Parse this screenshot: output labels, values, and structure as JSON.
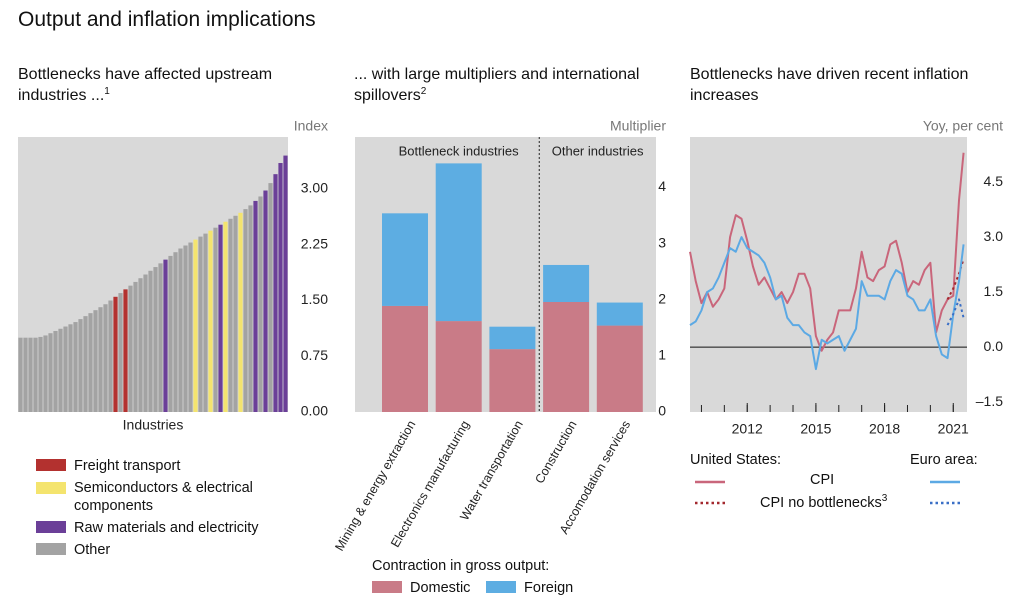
{
  "title": "Output and inflation implications",
  "chart_data": [
    {
      "type": "bar",
      "title": "Bottlenecks have affected upstream industries ...",
      "title_footnote": "1",
      "x_label": "Industries",
      "y_unit": "Index",
      "yaxis_side": "right",
      "background": "#d9d9d9",
      "categories": [
        null,
        null,
        null,
        null,
        null,
        null,
        null,
        null,
        null,
        null,
        null,
        null,
        null,
        null,
        null,
        null,
        null,
        null,
        null,
        null,
        null,
        null,
        null,
        null,
        null,
        null,
        null,
        null,
        null,
        null,
        null,
        null,
        null,
        null,
        null,
        null,
        null,
        null,
        null,
        null,
        null,
        null,
        null,
        null,
        null,
        null,
        null,
        null,
        null,
        null,
        null,
        null,
        null,
        null
      ],
      "ylim": [
        0,
        3.7
      ],
      "yticks": [
        {
          "value": 0,
          "label": "0.00"
        },
        0.75,
        {
          "value": 1.5,
          "label": "1.50"
        },
        2.25,
        {
          "value": 3,
          "label": "3.00"
        }
      ],
      "series": [
        {
          "name": "Freight transport",
          "color": "#b3312f",
          "values": [
            null,
            null,
            null,
            null,
            null,
            null,
            null,
            null,
            null,
            null,
            null,
            null,
            null,
            null,
            null,
            null,
            null,
            null,
            null,
            1.55,
            null,
            1.65,
            null,
            null,
            null,
            null,
            null,
            null,
            null,
            null,
            null,
            null,
            null,
            null,
            null,
            null,
            null,
            null,
            null,
            null,
            null,
            null,
            null,
            null,
            null,
            null,
            null,
            null,
            null,
            null,
            null,
            null,
            null,
            null
          ]
        },
        {
          "name": "Semiconductors & electrical components",
          "color": "#f4e46e",
          "values": [
            null,
            null,
            null,
            null,
            null,
            null,
            null,
            null,
            null,
            null,
            null,
            null,
            null,
            null,
            null,
            null,
            null,
            null,
            null,
            null,
            null,
            null,
            null,
            null,
            null,
            null,
            null,
            null,
            null,
            null,
            null,
            null,
            null,
            null,
            null,
            2.32,
            null,
            null,
            2.44,
            null,
            null,
            2.56,
            null,
            null,
            2.68,
            null,
            null,
            null,
            null,
            null,
            null,
            null,
            null,
            null
          ]
        },
        {
          "name": "Raw materials and electricity",
          "color": "#6b3f98",
          "values": [
            null,
            null,
            null,
            null,
            null,
            null,
            null,
            null,
            null,
            null,
            null,
            null,
            null,
            null,
            null,
            null,
            null,
            null,
            null,
            null,
            null,
            null,
            null,
            null,
            null,
            null,
            null,
            null,
            null,
            2.05,
            null,
            null,
            null,
            null,
            null,
            null,
            null,
            null,
            null,
            null,
            2.52,
            null,
            null,
            null,
            null,
            null,
            null,
            2.84,
            null,
            2.98,
            null,
            3.2,
            3.35,
            3.45
          ]
        },
        {
          "name": "Other",
          "color": "#a3a3a3",
          "values": [
            1,
            1,
            1,
            1,
            1.01,
            1.03,
            1.06,
            1.09,
            1.12,
            1.15,
            1.18,
            1.21,
            1.25,
            1.29,
            1.33,
            1.37,
            1.41,
            1.45,
            1.5,
            null,
            1.6,
            null,
            1.7,
            1.75,
            1.8,
            1.85,
            1.9,
            1.95,
            2,
            null,
            2.1,
            2.15,
            2.2,
            2.24,
            2.28,
            null,
            2.36,
            2.4,
            null,
            2.48,
            null,
            null,
            2.6,
            2.64,
            null,
            2.73,
            2.78,
            null,
            2.9,
            null,
            3.08,
            null,
            null,
            null
          ]
        }
      ]
    },
    {
      "type": "stacked_bar",
      "title": "... with large multipliers and international spillovers",
      "title_footnote": "2",
      "y_unit": "Multiplier",
      "yaxis_side": "right",
      "background": "#d9d9d9",
      "annotations": [
        "Bottleneck industries",
        "Other industries"
      ],
      "legend_title": "Contraction in gross output:",
      "categories": [
        "Mining & energy extraction",
        "Electronics manufacturing",
        "Water transportation",
        "Construction",
        "Accomodation services"
      ],
      "ylim": [
        0,
        4.9
      ],
      "yticks": [
        0,
        1,
        2,
        3,
        4
      ],
      "series": [
        {
          "name": "Domestic",
          "color": "#c97b87",
          "values": [
            1.89,
            1.62,
            1.12,
            1.96,
            1.54
          ]
        },
        {
          "name": "Foreign",
          "color": "#5dade2",
          "values": [
            1.65,
            2.81,
            0.4,
            0.66,
            0.41
          ]
        }
      ]
    },
    {
      "type": "line",
      "title": "Bottlenecks have driven recent inflation increases",
      "y_unit": "Yoy, per cent",
      "yaxis_side": "right",
      "background": "#d9d9d9",
      "reference_line": 0,
      "legend_groups": [
        "United States:",
        "Euro area:"
      ],
      "xlim": [
        2009.5,
        2021.6
      ],
      "xticks": [
        2012,
        2015,
        2018,
        2021
      ],
      "xticks_minor": [
        2010,
        2011,
        2012,
        2013,
        2014,
        2015,
        2016,
        2017,
        2018,
        2019,
        2020,
        2021
      ],
      "ylim": [
        -1.77,
        5.73
      ],
      "yticks": [
        4.5,
        {
          "value": 3,
          "label": "3.0"
        },
        1.5,
        {
          "value": 0,
          "label": "0.0"
        },
        {
          "value": -1.5,
          "label": "–1.5"
        }
      ],
      "x": [
        2009.5,
        2009.75,
        2010,
        2010.25,
        2010.5,
        2010.75,
        2011,
        2011.25,
        2011.5,
        2011.75,
        2012,
        2012.25,
        2012.5,
        2012.75,
        2013,
        2013.25,
        2013.5,
        2013.75,
        2014,
        2014.25,
        2014.5,
        2014.75,
        2015,
        2015.25,
        2015.5,
        2015.75,
        2016,
        2016.25,
        2016.5,
        2016.75,
        2017,
        2017.25,
        2017.5,
        2017.75,
        2018,
        2018.25,
        2018.5,
        2018.75,
        2019,
        2019.25,
        2019.5,
        2019.75,
        2020,
        2020.25,
        2020.5,
        2020.75,
        2021,
        2021.25,
        2021.45
      ],
      "series": [
        {
          "name": "CPI",
          "color": "#c9667b",
          "dash": "solid",
          "values": [
            2.6,
            1.8,
            1.2,
            1.5,
            1.1,
            1.3,
            1.6,
            3.0,
            3.6,
            3.5,
            2.9,
            2.2,
            1.7,
            1.9,
            1.6,
            1.3,
            1.5,
            1.2,
            1.5,
            2.0,
            2.0,
            1.6,
            0.3,
            -0.1,
            0.2,
            0.4,
            1.0,
            1.0,
            1.0,
            1.6,
            2.6,
            1.9,
            1.8,
            2.1,
            2.2,
            2.8,
            2.9,
            2.3,
            1.5,
            1.8,
            1.7,
            2.1,
            2.3,
            0.4,
            1.0,
            1.3,
            1.4,
            4.0,
            5.3
          ]
        },
        {
          "name": "CPI no bottlenecks",
          "name_footnote": "3",
          "color": "#a3282e",
          "dash": "dotted",
          "values": [
            null,
            null,
            null,
            null,
            null,
            null,
            null,
            null,
            null,
            null,
            null,
            null,
            null,
            null,
            null,
            null,
            null,
            null,
            null,
            null,
            null,
            null,
            null,
            null,
            null,
            null,
            null,
            null,
            null,
            null,
            null,
            null,
            null,
            null,
            null,
            null,
            null,
            null,
            null,
            null,
            null,
            null,
            null,
            null,
            null,
            1.3,
            1.6,
            2.0,
            2.4
          ]
        },
        {
          "color": "#5ca9e4",
          "dash": "solid",
          "values": [
            0.6,
            0.7,
            1.0,
            1.5,
            1.6,
            1.9,
            2.3,
            2.7,
            2.6,
            3.0,
            2.7,
            2.6,
            2.5,
            2.3,
            1.9,
            1.3,
            1.4,
            0.8,
            0.6,
            0.6,
            0.4,
            0.3,
            -0.6,
            0.2,
            0.1,
            0.2,
            0.3,
            -0.1,
            0.2,
            0.5,
            1.8,
            1.4,
            1.4,
            1.4,
            1.3,
            1.8,
            2.1,
            2.0,
            1.4,
            1.3,
            1.0,
            1.0,
            1.3,
            0.3,
            -0.2,
            -0.3,
            0.9,
            1.8,
            2.8
          ]
        },
        {
          "color": "#3a6fc6",
          "dash": "dotted",
          "values": [
            null,
            null,
            null,
            null,
            null,
            null,
            null,
            null,
            null,
            null,
            null,
            null,
            null,
            null,
            null,
            null,
            null,
            null,
            null,
            null,
            null,
            null,
            null,
            null,
            null,
            null,
            null,
            null,
            null,
            null,
            null,
            null,
            null,
            null,
            null,
            null,
            null,
            null,
            null,
            null,
            null,
            null,
            null,
            null,
            null,
            0.6,
            0.9,
            1.3,
            0.8
          ]
        }
      ]
    }
  ]
}
